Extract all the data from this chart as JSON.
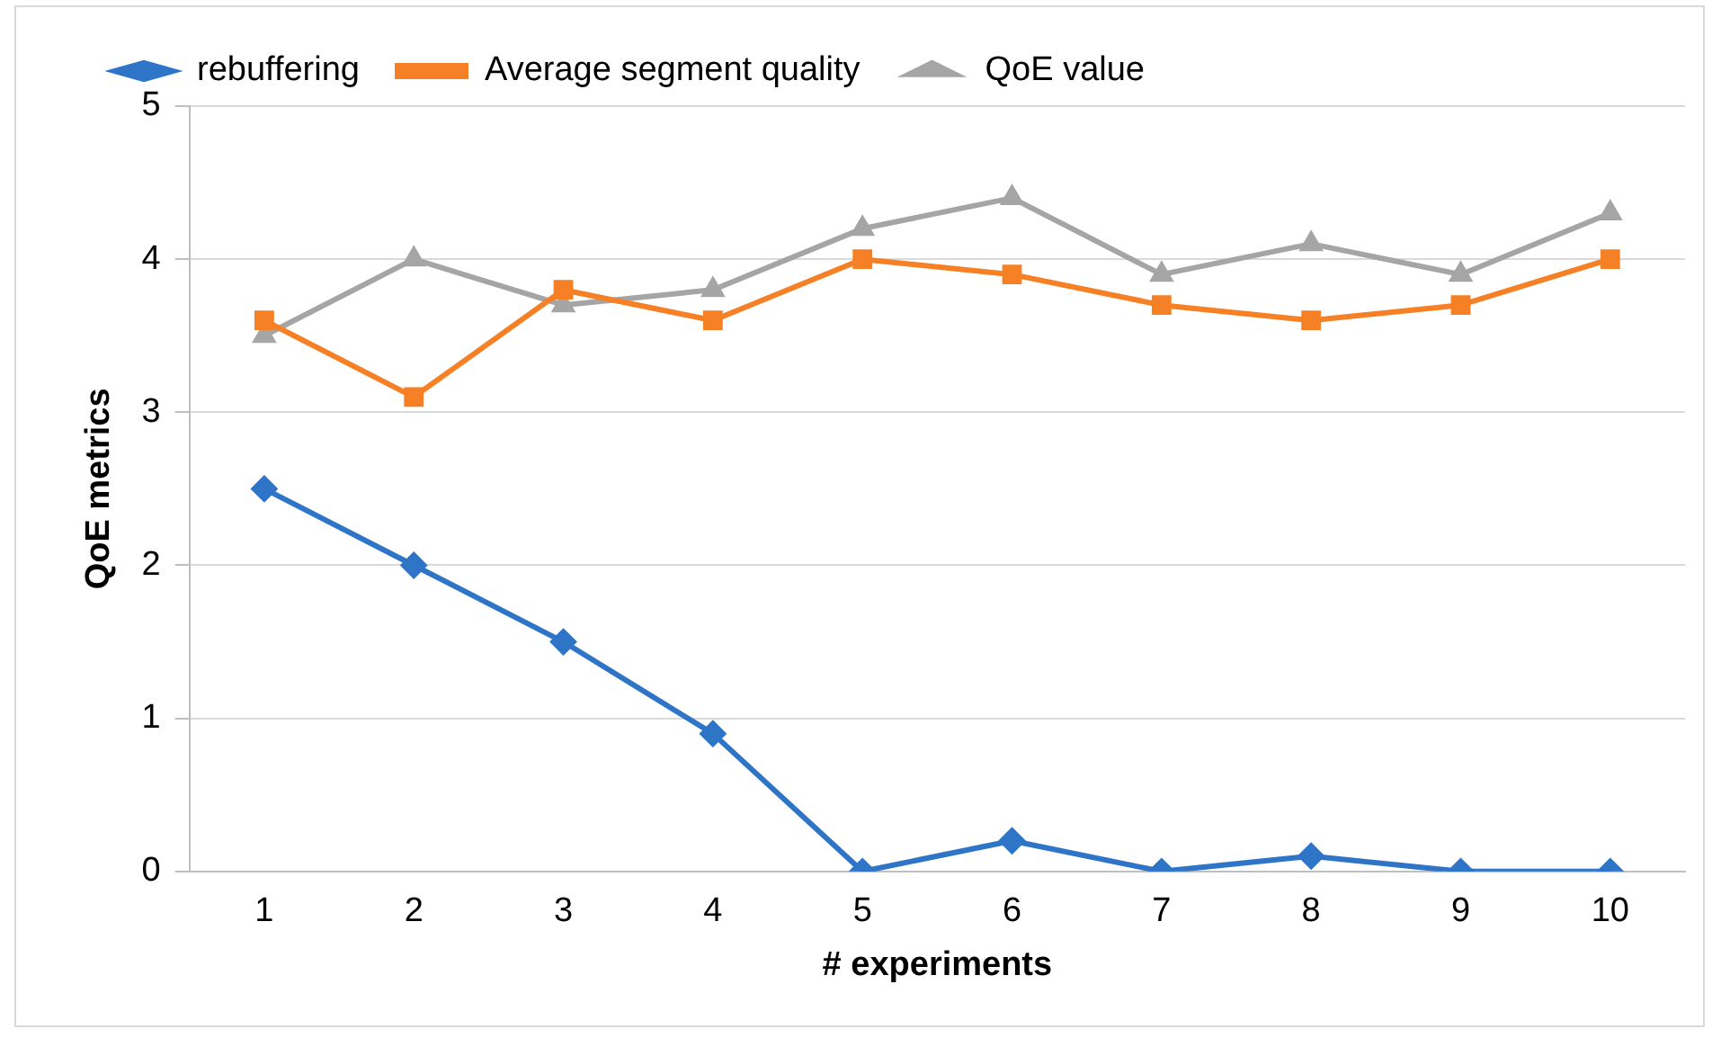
{
  "chart_data": {
    "type": "line",
    "xlabel": "# experiments",
    "ylabel": "QoE metrics",
    "categories": [
      "1",
      "2",
      "3",
      "4",
      "5",
      "6",
      "7",
      "8",
      "9",
      "10"
    ],
    "series": [
      {
        "name": "rebuffering",
        "color": "#2e75c8",
        "marker": "diamond",
        "values": [
          2.5,
          2.0,
          1.5,
          0.9,
          0,
          0.2,
          0,
          0.1,
          0,
          0
        ]
      },
      {
        "name": "Average segment quality",
        "color": "#f58025",
        "marker": "square",
        "values": [
          3.6,
          3.1,
          3.8,
          3.6,
          4.0,
          3.9,
          3.7,
          3.6,
          3.7,
          4.0
        ]
      },
      {
        "name": "QoE value",
        "color": "#a5a5a5",
        "marker": "triangle",
        "values": [
          3.5,
          4.0,
          3.7,
          3.8,
          4.2,
          4.4,
          3.9,
          4.1,
          3.9,
          4.3
        ]
      }
    ],
    "ylim": [
      0,
      5
    ],
    "yticks": [
      0,
      1,
      2,
      3,
      4,
      5
    ],
    "grid": "y",
    "legend": "top left",
    "line_style": "solid"
  }
}
